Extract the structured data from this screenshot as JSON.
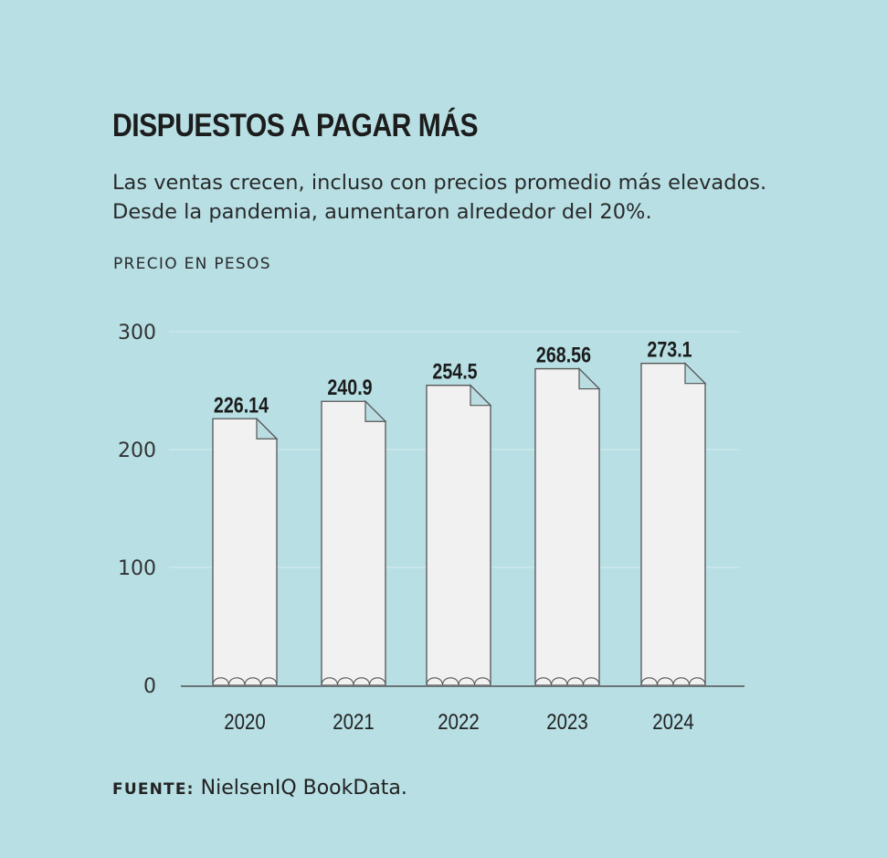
{
  "title": "DISPUESTOS A PAGAR MÁS",
  "subtitle_line1": "Las ventas crecen, incluso con precios promedio más elevados.",
  "subtitle_line2": "Desde la pandemia, aumentaron alrededor del 20%.",
  "axis_label": "PRECIO EN PESOS",
  "source_label": "FUENTE:",
  "source_text": "NielsenIQ BookData.",
  "colors": {
    "background": "#b7dfe4",
    "bar_fill": "#f1f1f1",
    "bar_stroke": "#555555",
    "fold_fill": "#b9dde1",
    "axis": "#6b7477",
    "grid": "#d3e9ec"
  },
  "chart_data": {
    "type": "bar",
    "title": "DISPUESTOS A PAGAR MÁS",
    "xlabel": "",
    "ylabel": "PRECIO EN PESOS",
    "categories": [
      "2020",
      "2021",
      "2022",
      "2023",
      "2024"
    ],
    "values": [
      226.14,
      240.9,
      254.5,
      268.56,
      273.1
    ],
    "value_labels": [
      "226.14",
      "240.9",
      "254.5",
      "268.56",
      "273.1"
    ],
    "ylim": [
      0,
      300
    ],
    "yticks": [
      0,
      100,
      200,
      300
    ],
    "ytick_labels": [
      "0",
      "100",
      "200",
      "300"
    ],
    "grid": true
  }
}
